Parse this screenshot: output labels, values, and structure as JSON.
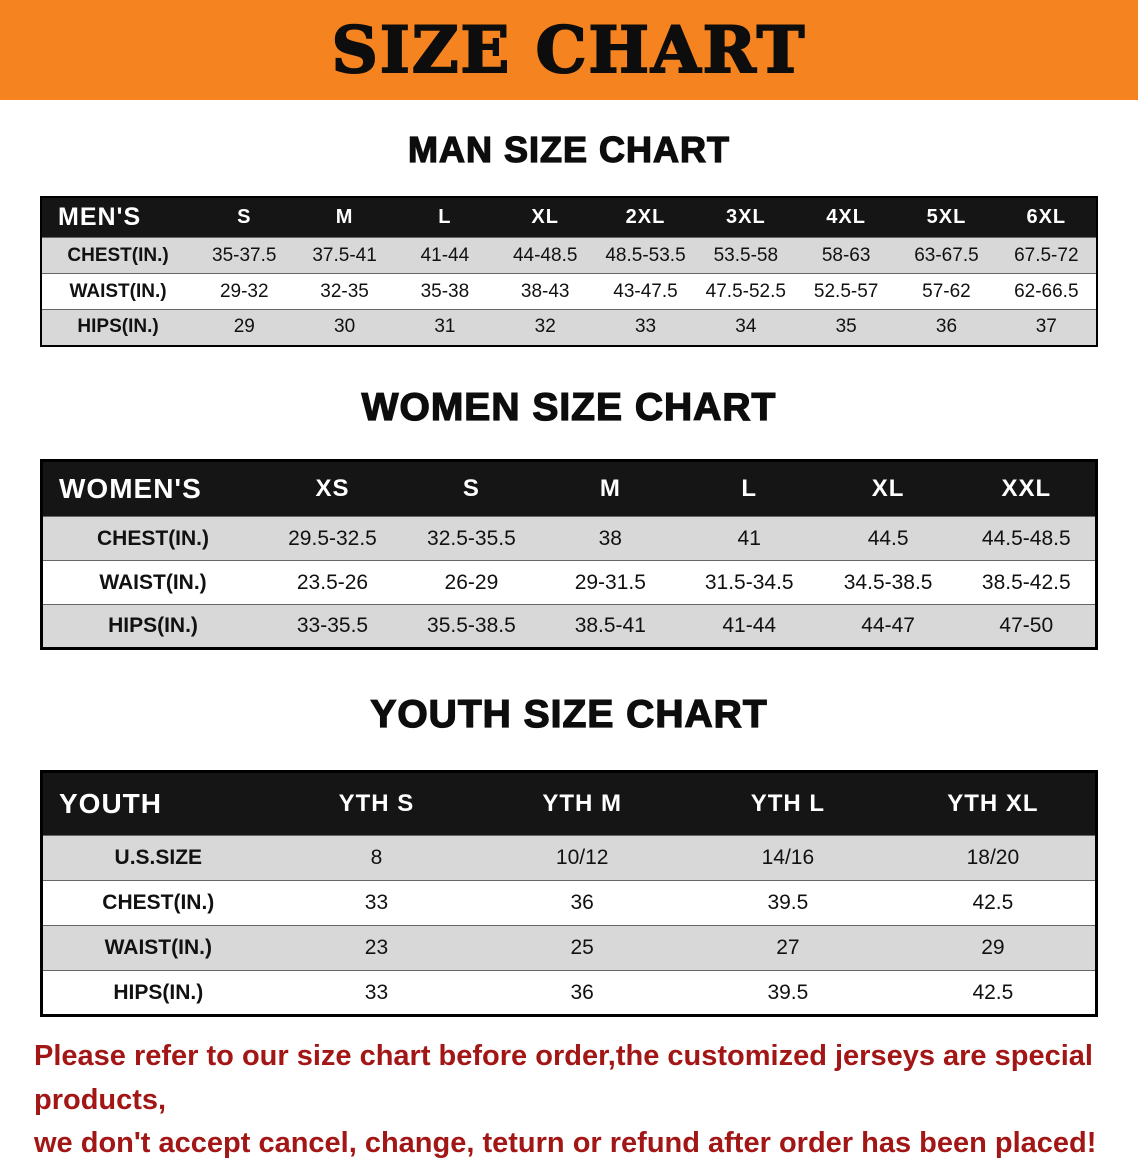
{
  "colors": {
    "banner_bg": "#f5831f",
    "table_header_bg": "#151515",
    "row_alt_bg": "#d8d8d8",
    "disclaimer_red": "#a31616"
  },
  "banner": {
    "title": "SIZE CHART"
  },
  "chart_data": [
    {
      "type": "table",
      "title": "MAN SIZE CHART",
      "columns": [
        "MEN'S",
        "S",
        "M",
        "L",
        "XL",
        "2XL",
        "3XL",
        "4XL",
        "5XL",
        "6XL"
      ],
      "rows": [
        [
          "CHEST(IN.)",
          "35-37.5",
          "37.5-41",
          "41-44",
          "44-48.5",
          "48.5-53.5",
          "53.5-58",
          "58-63",
          "63-67.5",
          "67.5-72"
        ],
        [
          "WAIST(IN.)",
          "29-32",
          "32-35",
          "35-38",
          "38-43",
          "43-47.5",
          "47.5-52.5",
          "52.5-57",
          "57-62",
          "62-66.5"
        ],
        [
          "HIPS(IN.)",
          "29",
          "30",
          "31",
          "32",
          "33",
          "34",
          "35",
          "36",
          "37"
        ]
      ]
    },
    {
      "type": "table",
      "title": "WOMEN SIZE CHART",
      "columns": [
        "WOMEN'S",
        "XS",
        "S",
        "M",
        "L",
        "XL",
        "XXL"
      ],
      "rows": [
        [
          "CHEST(IN.)",
          "29.5-32.5",
          "32.5-35.5",
          "38",
          "41",
          "44.5",
          "44.5-48.5"
        ],
        [
          "WAIST(IN.)",
          "23.5-26",
          "26-29",
          "29-31.5",
          "31.5-34.5",
          "34.5-38.5",
          "38.5-42.5"
        ],
        [
          "HIPS(IN.)",
          "33-35.5",
          "35.5-38.5",
          "38.5-41",
          "41-44",
          "44-47",
          "47-50"
        ]
      ]
    },
    {
      "type": "table",
      "title": "YOUTH SIZE CHART",
      "columns": [
        "YOUTH",
        "YTH S",
        "YTH M",
        "YTH L",
        "YTH XL"
      ],
      "rows": [
        [
          "U.S.SIZE",
          "8",
          "10/12",
          "14/16",
          "18/20"
        ],
        [
          "CHEST(IN.)",
          "33",
          "36",
          "39.5",
          "42.5"
        ],
        [
          "WAIST(IN.)",
          "23",
          "25",
          "27",
          "29"
        ],
        [
          "HIPS(IN.)",
          "33",
          "36",
          "39.5",
          "42.5"
        ]
      ]
    }
  ],
  "disclaimer": {
    "line1": "Please refer to our size chart before order,the customized jerseys are special products,",
    "line2": "we don't accept cancel, change, teturn or refund after order has been placed!"
  }
}
